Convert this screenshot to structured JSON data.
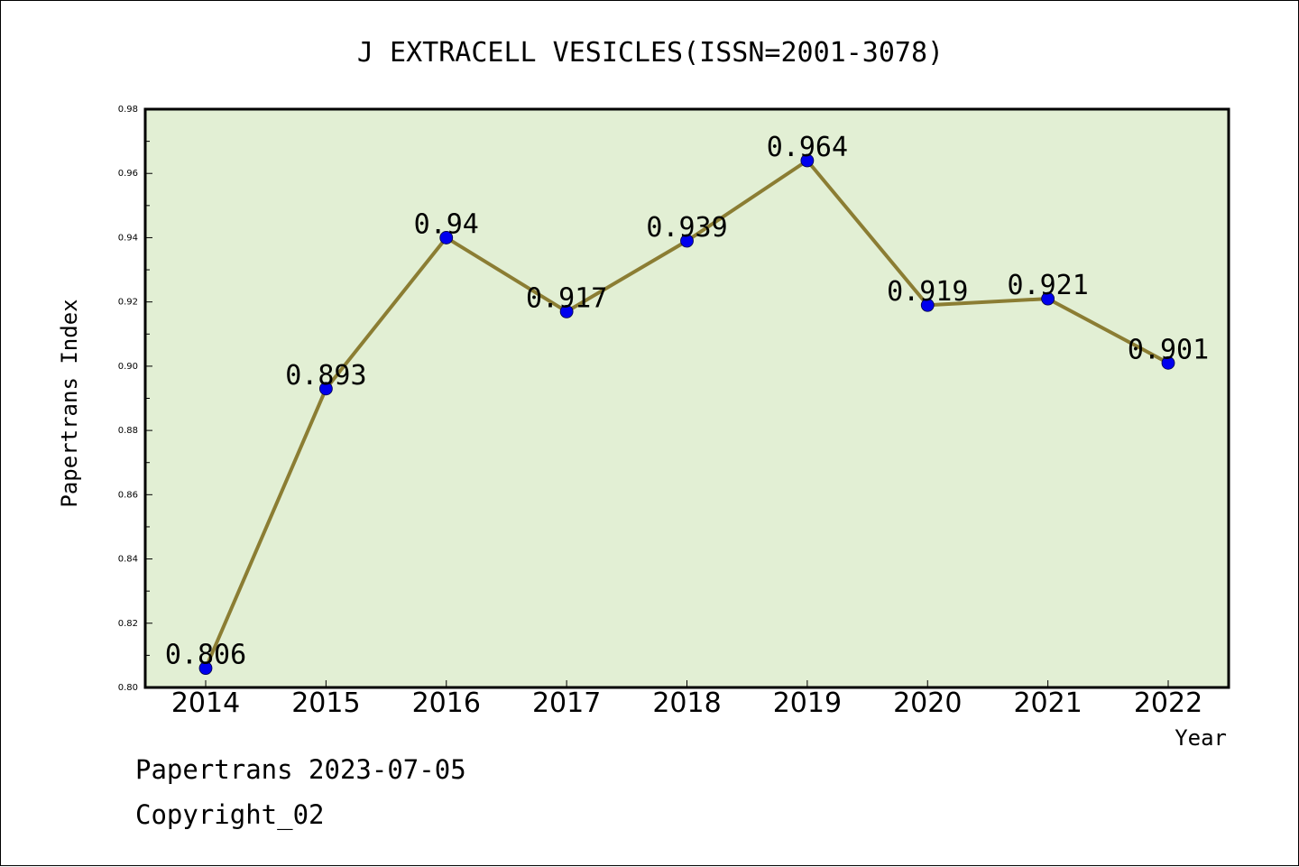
{
  "chart_data": {
    "type": "line",
    "title": "J EXTRACELL VESICLES(ISSN=2001-3078)",
    "xlabel": "Year",
    "ylabel": "Papertrans Index",
    "categories": [
      "2014",
      "2015",
      "2016",
      "2017",
      "2018",
      "2019",
      "2020",
      "2021",
      "2022"
    ],
    "values": [
      0.806,
      0.893,
      0.94,
      0.917,
      0.939,
      0.964,
      0.919,
      0.921,
      0.901
    ],
    "data_labels": [
      "0.806",
      "0.893",
      "0.94",
      "0.917",
      "0.939",
      "0.964",
      "0.919",
      "0.921",
      "0.901"
    ],
    "ylim": [
      0.8,
      0.98
    ],
    "yticks": [
      "0.80",
      "0.82",
      "0.84",
      "0.86",
      "0.88",
      "0.90",
      "0.92",
      "0.94",
      "0.96",
      "0.98"
    ],
    "grid": false,
    "colors": {
      "plot_background": "#e2efd4",
      "line": "#8b7d33",
      "marker": "#0000ee"
    }
  },
  "footer": {
    "source": "Papertrans 2023-07-05",
    "copyright": "Copyright_02"
  }
}
